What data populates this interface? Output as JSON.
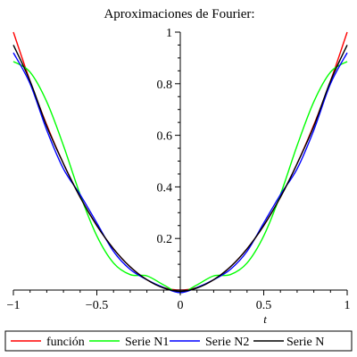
{
  "chart_data": {
    "type": "line",
    "title": "Aproximaciones de Fourier:",
    "xlabel": "t",
    "ylabel": "",
    "xlim": [
      -1,
      1
    ],
    "ylim": [
      -0.02,
      1
    ],
    "x_ticks": [
      -1,
      -0.5,
      0,
      0.5,
      1
    ],
    "x_tick_labels": [
      "−1",
      "−0.5",
      "0",
      "0.5",
      "1"
    ],
    "y_ticks": [
      0.2,
      0.4,
      0.6,
      0.8,
      1
    ],
    "y_tick_labels": [
      "0.2",
      "0.4",
      "0.6",
      "0.8",
      "1"
    ],
    "legend_position": "bottom",
    "x": [
      -1,
      -0.9,
      -0.8,
      -0.7,
      -0.6,
      -0.5,
      -0.4,
      -0.3,
      -0.2,
      -0.1,
      0,
      0.1,
      0.2,
      0.3,
      0.4,
      0.5,
      0.6,
      0.7,
      0.8,
      0.9,
      1
    ],
    "series": [
      {
        "name": "función",
        "color": "#ff0000",
        "values": [
          1.0,
          0.81,
          0.64,
          0.49,
          0.36,
          0.25,
          0.16,
          0.09,
          0.04,
          0.01,
          0.0,
          0.01,
          0.04,
          0.09,
          0.16,
          0.25,
          0.36,
          0.49,
          0.64,
          0.81,
          1.0
        ]
      },
      {
        "name": "Serie N1",
        "color": "#00ff00",
        "values": [
          0.886,
          0.845,
          0.73,
          0.56,
          0.37,
          0.21,
          0.105,
          0.06,
          0.055,
          0.02,
          -0.01,
          0.02,
          0.055,
          0.06,
          0.105,
          0.21,
          0.37,
          0.56,
          0.73,
          0.845,
          0.886
        ]
      },
      {
        "name": "Serie N2",
        "color": "#0000ff",
        "values": [
          0.92,
          0.8,
          0.62,
          0.47,
          0.37,
          0.26,
          0.15,
          0.08,
          0.04,
          0.01,
          -0.01,
          0.01,
          0.04,
          0.08,
          0.15,
          0.26,
          0.37,
          0.47,
          0.62,
          0.8,
          0.92
        ]
      },
      {
        "name": "Serie N",
        "color": "#000000",
        "values": [
          0.95,
          0.81,
          0.635,
          0.49,
          0.36,
          0.25,
          0.16,
          0.09,
          0.04,
          0.008,
          -0.005,
          0.008,
          0.04,
          0.09,
          0.16,
          0.25,
          0.36,
          0.49,
          0.635,
          0.81,
          0.95
        ]
      }
    ]
  }
}
